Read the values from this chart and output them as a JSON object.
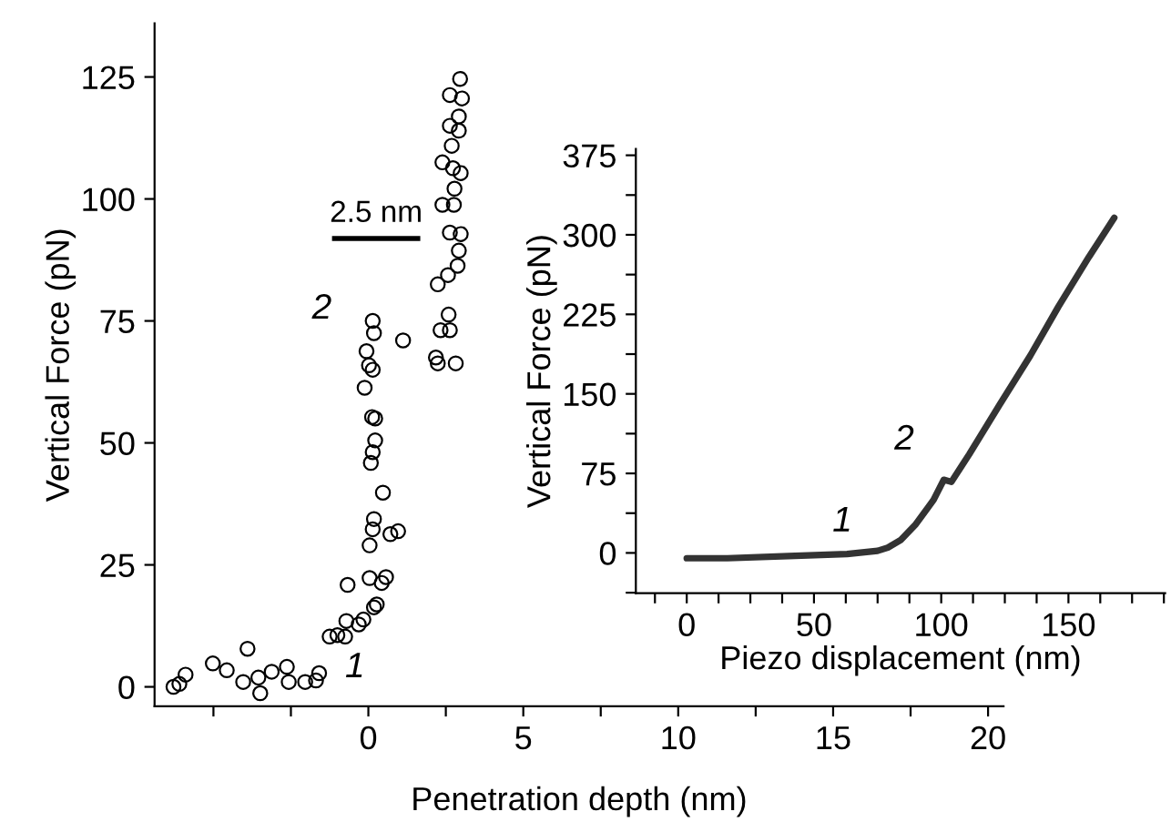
{
  "chart_data": [
    {
      "type": "scatter",
      "xlabel": "Penetration depth (nm)",
      "ylabel": "Vertical Force (pN)",
      "marker": "circle",
      "grid": false,
      "legend": false,
      "xlim": [
        -6.9,
        20.5
      ],
      "xticks": [
        {
          "value": -5,
          "label": null
        },
        {
          "value": -2.5,
          "label": null
        },
        0,
        {
          "value": 2.5,
          "label": null
        },
        5,
        {
          "value": 7.5,
          "label": null
        },
        10,
        {
          "value": 12.5,
          "label": null
        },
        15,
        {
          "value": 17.5,
          "label": null
        },
        20
      ],
      "ylim": [
        -4,
        136
      ],
      "yticks": [
        0,
        25,
        50,
        75,
        100,
        125
      ],
      "annotations": [
        "2.5 nm",
        "1",
        "2"
      ],
      "series": [
        {
          "color": "#000000",
          "x": [
            -6.29,
            -6.1,
            -5.9,
            -5.02,
            -4.57,
            -3.9,
            -4.04,
            -3.49,
            -3.55,
            -3.12,
            -2.63,
            -2.57,
            -2.04,
            -1.69,
            -1.59,
            -1.25,
            -1.0,
            -0.75,
            -0.67,
            -0.71,
            -0.31,
            -0.16,
            0.04,
            0.18,
            0.27,
            0.43,
            0.57,
            0.04,
            0.14,
            0.18,
            0.71,
            0.96,
            0.47,
            0.08,
            0.14,
            0.22,
            0.22,
            0.12,
            -0.12,
            0.02,
            0.14,
            -0.06,
            0.18,
            0.14,
            1.12,
            2.18,
            2.24,
            2.33,
            2.63,
            2.82,
            2.59,
            2.24,
            2.57,
            2.88,
            2.92,
            2.63,
            2.98,
            2.39,
            2.76,
            2.78,
            2.98,
            2.73,
            2.39,
            2.69,
            2.92,
            2.63,
            2.92,
            2.63,
            3.02,
            2.96
          ],
          "values": [
            0,
            0.6,
            2.5,
            4.8,
            3.4,
            7.8,
            1.0,
            -1.3,
            1.9,
            3.1,
            4.1,
            1.0,
            1.0,
            1.3,
            2.8,
            10.3,
            10.6,
            10.3,
            20.9,
            13.5,
            12.8,
            13.8,
            22.3,
            16.3,
            16.9,
            21.3,
            22.5,
            29.0,
            32.3,
            34.4,
            31.3,
            31.9,
            39.8,
            45.9,
            48.1,
            50.5,
            55.0,
            55.3,
            61.3,
            65.9,
            65.0,
            68.8,
            72.5,
            75.0,
            71.0,
            67.5,
            66.3,
            73.1,
            73.1,
            66.3,
            76.3,
            82.5,
            84.4,
            86.3,
            89.4,
            93.1,
            92.8,
            98.8,
            98.8,
            102.1,
            105.3,
            106.3,
            107.5,
            110.9,
            114.0,
            115.0,
            116.9,
            121.3,
            120.6,
            124.6
          ]
        }
      ]
    },
    {
      "type": "line",
      "xlabel": "Piezo displacement (nm)",
      "ylabel": "Vertical Force (pN)",
      "marker": "none",
      "grid": false,
      "legend": false,
      "xlim": [
        -20,
        188
      ],
      "xticks": [
        {
          "value": -12.5,
          "label": null
        },
        0,
        {
          "value": 12.5,
          "label": null
        },
        {
          "value": 25,
          "label": null
        },
        {
          "value": 37.5,
          "label": null
        },
        50,
        {
          "value": 62.5,
          "label": null
        },
        {
          "value": 75,
          "label": null
        },
        {
          "value": 87.5,
          "label": null
        },
        100,
        {
          "value": 112.5,
          "label": null
        },
        {
          "value": 125,
          "label": null
        },
        {
          "value": 137.5,
          "label": null
        },
        150,
        {
          "value": 162.5,
          "label": null
        },
        {
          "value": 175,
          "label": null
        },
        {
          "value": 187.5,
          "label": null
        }
      ],
      "ylim": [
        -38,
        381
      ],
      "yticks": [
        {
          "value": -37.5,
          "label": null
        },
        0,
        {
          "value": 37.5,
          "label": null
        },
        75,
        {
          "value": 112.5,
          "label": null
        },
        150,
        {
          "value": 187.5,
          "label": null
        },
        225,
        {
          "value": 262.5,
          "label": null
        },
        300,
        {
          "value": 337.5,
          "label": null
        },
        375
      ],
      "annotations": [
        "1",
        "2"
      ],
      "series": [
        {
          "color": "#333333",
          "x": [
            0,
            16,
            40,
            63,
            75,
            79,
            84,
            90,
            97,
            101,
            104,
            111,
            123,
            135,
            146,
            158,
            168
          ],
          "values": [
            -5,
            -5,
            -3,
            -1,
            2,
            5,
            12,
            27,
            50,
            69,
            67,
            93,
            140,
            186,
            232,
            279,
            316
          ]
        }
      ]
    }
  ]
}
